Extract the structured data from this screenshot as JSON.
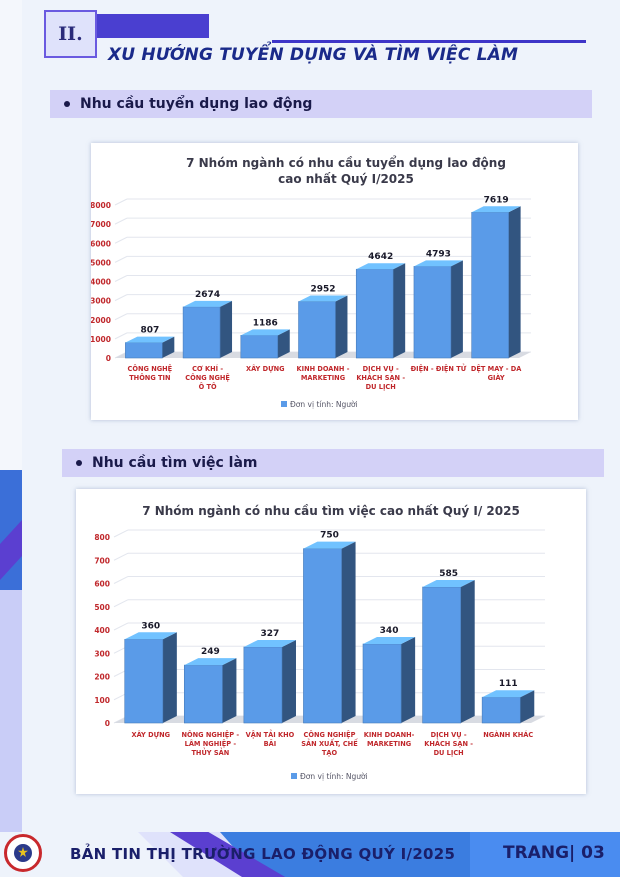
{
  "header": {
    "section_number": "II.",
    "section_title": "XU HƯỚNG TUYỂN DỤNG VÀ TÌM VIỆC LÀM"
  },
  "subsections": [
    {
      "label": "Nhu cầu tuyển dụng lao động"
    },
    {
      "label": "Nhu cầu tìm việc làm"
    }
  ],
  "chart_data": [
    {
      "type": "bar",
      "title_lines": [
        "7 Nhóm ngành có nhu cầu tuyển dụng lao động",
        "cao nhất Quý I/2025"
      ],
      "categories": [
        [
          "CÔNG NGHỆ",
          "THÔNG TIN"
        ],
        [
          "CƠ KHÍ -",
          "CÔNG NGHỆ",
          "Ô TÔ"
        ],
        [
          "XÂY DỰNG"
        ],
        [
          "KINH DOANH -",
          "MARKETING"
        ],
        [
          "DỊCH VỤ -",
          "KHÁCH SẠN -",
          "DU LỊCH"
        ],
        [
          "ĐIỆN - ĐIỆN TỬ"
        ],
        [
          "DỆT MAY - DA",
          "GIÀY"
        ]
      ],
      "values": [
        807,
        2674,
        1186,
        2952,
        4642,
        4793,
        7619
      ],
      "ylim": [
        0,
        8000
      ],
      "yticks": [
        0,
        1000,
        2000,
        3000,
        4000,
        5000,
        6000,
        7000,
        8000
      ],
      "legend": "Đơn vị tính: Người",
      "legend_position": "bottom",
      "bar_color": "#5a9be8",
      "axis_label_color": "#c0282c"
    },
    {
      "type": "bar",
      "title_lines": [
        "7 Nhóm ngành có nhu cầu tìm việc cao nhất Quý I/ 2025"
      ],
      "categories": [
        [
          "XÂY DỰNG"
        ],
        [
          "NÔNG NGHIỆP -",
          "LÂM NGHIỆP -",
          "THỦY SẢN"
        ],
        [
          "VẬN TẢI KHO",
          "BÃI"
        ],
        [
          "CÔNG NGHIỆP",
          "SẢN XUẤT, CHẾ",
          "TẠO"
        ],
        [
          "KINH DOANH-",
          "MARKETING"
        ],
        [
          "DỊCH VỤ -",
          "KHÁCH SẠN -",
          "DU LỊCH"
        ],
        [
          "NGÀNH KHÁC"
        ]
      ],
      "values": [
        360,
        249,
        327,
        750,
        340,
        585,
        111
      ],
      "ylim": [
        0,
        800
      ],
      "yticks": [
        0,
        100,
        200,
        300,
        400,
        500,
        600,
        700,
        800
      ],
      "legend": "Đơn vị tính: Người",
      "legend_position": "bottom",
      "bar_color": "#5a9be8",
      "axis_label_color": "#c0282c"
    }
  ],
  "footer": {
    "bulletin_title": "BẢN TIN THỊ TRƯỜNG LAO ĐỘNG QUÝ I/2025",
    "page_label": "TRANG| 03"
  }
}
